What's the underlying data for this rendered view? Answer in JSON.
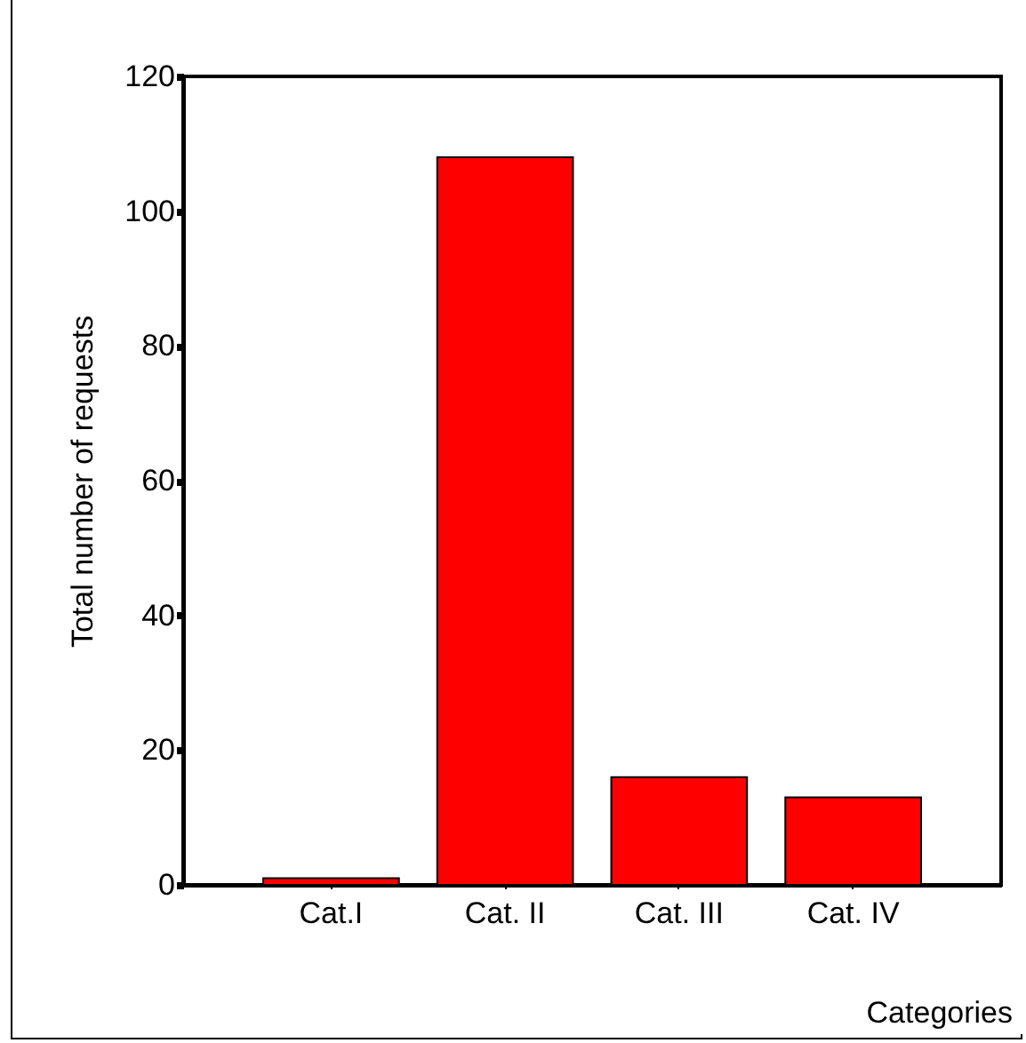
{
  "chart_data": {
    "type": "bar",
    "xlabel": "Categories",
    "ylabel": "Total number of requests",
    "categories": [
      "Cat.I",
      "Cat. II",
      "Cat. III",
      "Cat. IV"
    ],
    "values": [
      1,
      108,
      16,
      13
    ],
    "color": "#ff0000",
    "ylim": [
      0,
      120
    ],
    "yticks": [
      0,
      20,
      40,
      60,
      80,
      100,
      120
    ],
    "grid": false
  }
}
